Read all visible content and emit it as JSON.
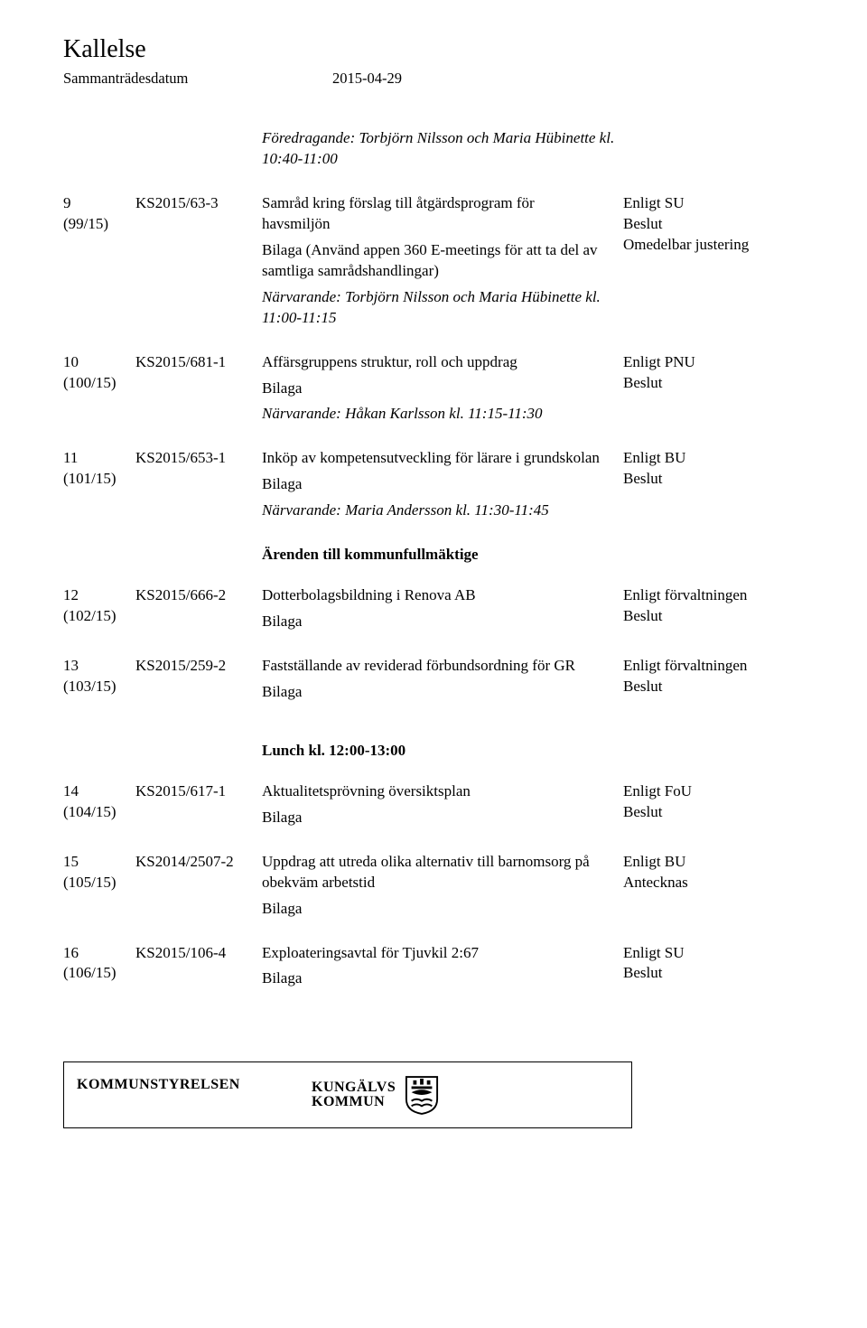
{
  "header": {
    "title": "Kallelse",
    "subhead_label": "Sammanträdesdatum",
    "subhead_date": "2015-04-29"
  },
  "intro": {
    "presenter_line": "Föredragande: Torbjörn Nilsson och Maria Hübinette kl. 10:40-11:00"
  },
  "items": [
    {
      "num": "9",
      "num_paren": "(99/15)",
      "ref": "KS2015/63-3",
      "desc_title": "Samråd kring förslag till åtgärdsprogram för havsmiljön",
      "desc_extra": "Bilaga (Använd appen 360 E-meetings för att ta del av samtliga samrådshandlingar)",
      "presenter": "Närvarande: Torbjörn Nilsson och Maria Hübinette kl. 11:00-11:15",
      "decision1": "Enligt SU",
      "decision2": "Beslut",
      "decision3": "Omedelbar justering"
    },
    {
      "num": "10",
      "num_paren": "(100/15)",
      "ref": "KS2015/681-1",
      "desc_title": "Affärsgruppens struktur, roll och uppdrag",
      "desc_extra": "Bilaga",
      "presenter": "Närvarande: Håkan Karlsson kl. 11:15-11:30",
      "decision1": "Enligt PNU",
      "decision2": "Beslut",
      "decision3": ""
    },
    {
      "num": "11",
      "num_paren": "(101/15)",
      "ref": "KS2015/653-1",
      "desc_title": "Inköp av kompetensutveckling för lärare i grundskolan",
      "desc_extra": "Bilaga",
      "presenter": "Närvarande: Maria Andersson kl. 11:30-11:45",
      "decision1": "Enligt BU",
      "decision2": "Beslut",
      "decision3": ""
    }
  ],
  "section1_heading": "Ärenden till kommunfullmäktige",
  "items2": [
    {
      "num": "12",
      "num_paren": "(102/15)",
      "ref": "KS2015/666-2",
      "desc_title": "Dotterbolagsbildning i Renova AB",
      "desc_extra": "Bilaga",
      "presenter": "",
      "decision1": "Enligt förvaltningen",
      "decision2": "Beslut",
      "decision3": ""
    },
    {
      "num": "13",
      "num_paren": "(103/15)",
      "ref": "KS2015/259-2",
      "desc_title": "Fastställande av reviderad förbundsordning för GR",
      "desc_extra": "Bilaga",
      "presenter": "",
      "decision1": "Enligt förvaltningen",
      "decision2": "Beslut",
      "decision3": ""
    }
  ],
  "section2_heading": "Lunch kl. 12:00-13:00",
  "items3": [
    {
      "num": "14",
      "num_paren": "(104/15)",
      "ref": "KS2015/617-1",
      "desc_title": "Aktualitetsprövning översiktsplan",
      "desc_extra": "Bilaga",
      "presenter": "",
      "decision1": "Enligt FoU",
      "decision2": "Beslut",
      "decision3": ""
    },
    {
      "num": "15",
      "num_paren": "(105/15)",
      "ref": "KS2014/2507-2",
      "desc_title": "Uppdrag att utreda olika alternativ till barnomsorg på obekväm arbetstid",
      "desc_extra": "Bilaga",
      "presenter": "",
      "decision1": "Enligt BU",
      "decision2": "Antecknas",
      "decision3": ""
    },
    {
      "num": "16",
      "num_paren": "(106/15)",
      "ref": "KS2015/106-4",
      "desc_title": "Exploateringsavtal för Tjuvkil 2:67",
      "desc_extra": "Bilaga",
      "presenter": "",
      "decision1": "Enligt SU",
      "decision2": "Beslut",
      "decision3": ""
    }
  ],
  "footer": {
    "left": "KOMMUNSTYRELSEN",
    "logo_line1": "KUNGÄLVS",
    "logo_line2": "KOMMUN"
  },
  "colors": {
    "text": "#000000",
    "background": "#ffffff",
    "border": "#000000"
  },
  "typography": {
    "body_fontsize_pt": 13,
    "title_fontsize_pt": 21,
    "font_family": "Garamond/serif"
  }
}
